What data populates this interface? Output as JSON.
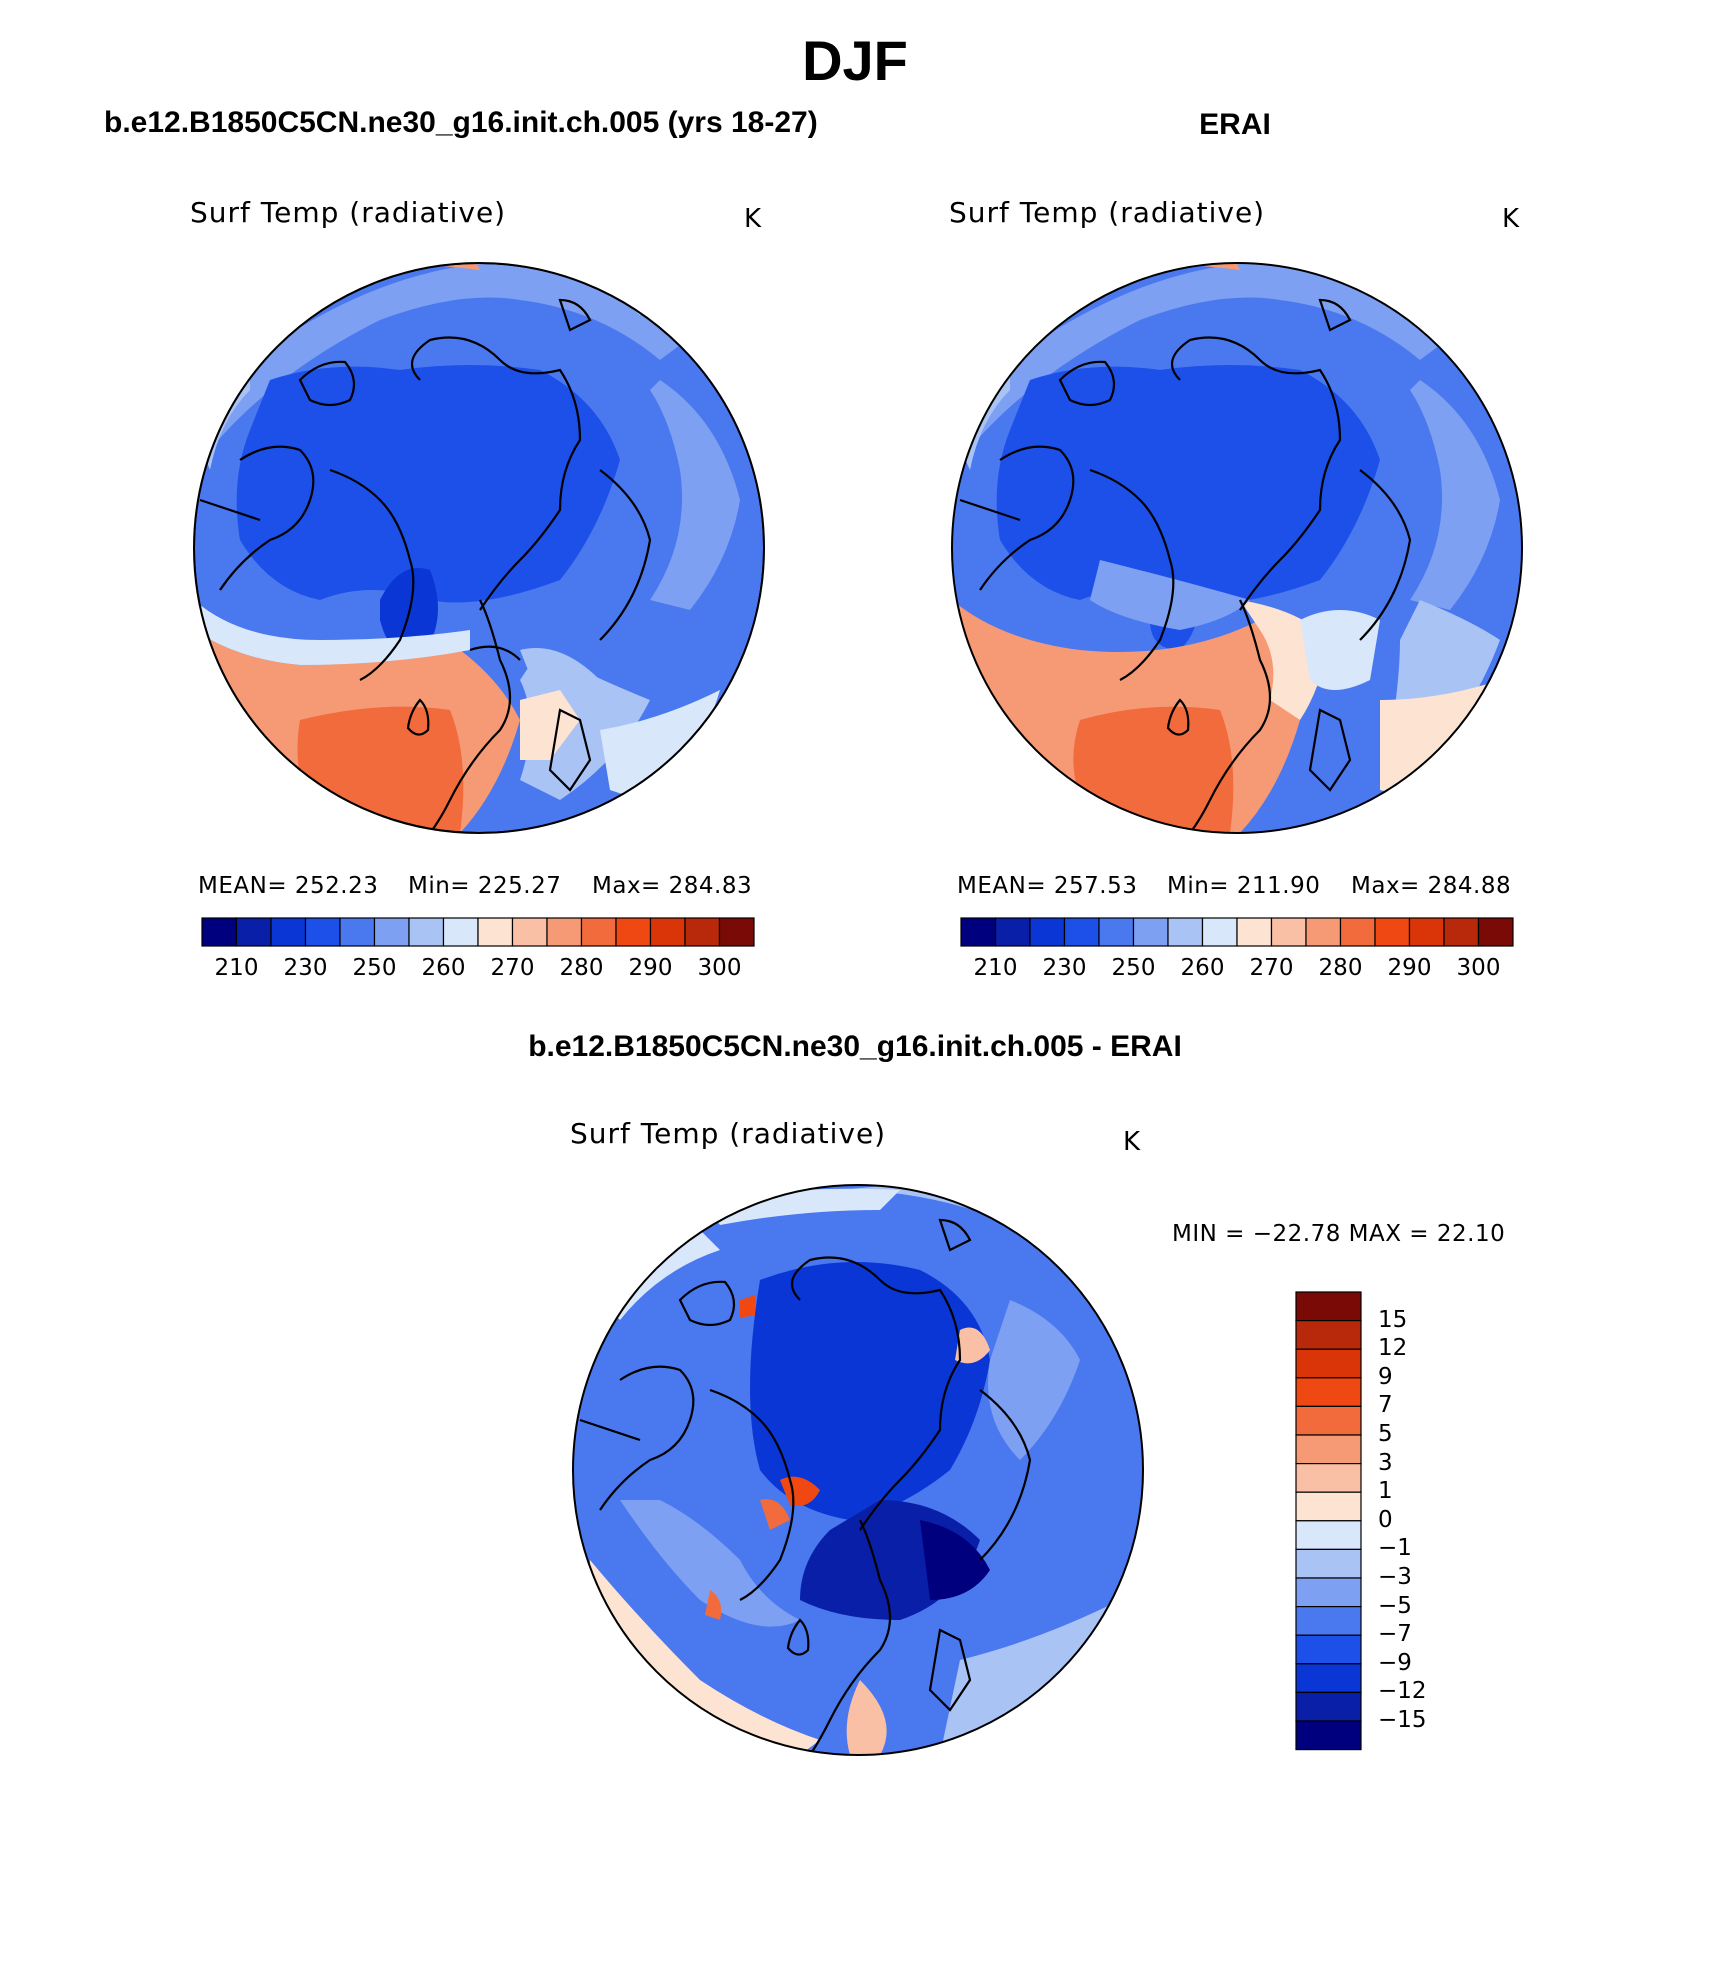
{
  "figure": {
    "season": "DJF",
    "model_title": "b.e12.B1850C5CN.ne30_g16.init.ch.005 (yrs 18-27)",
    "obs_title": "ERAI",
    "diff_title": "b.e12.B1850C5CN.ne30_g16.init.ch.005 - ERAI"
  },
  "panels": {
    "model": {
      "variable": "Surf Temp (radiative)",
      "units": "K",
      "mean_text": "MEAN=  252.23",
      "min_text": "Min=  225.27",
      "max_text": "Max=  284.83",
      "mean": 252.23,
      "min": 225.27,
      "max": 284.83
    },
    "obs": {
      "variable": "Surf Temp (radiative)",
      "units": "K",
      "mean_text": "MEAN=  257.53",
      "min_text": "Min=  211.90",
      "max_text": "Max=  284.88",
      "mean": 257.53,
      "min": 211.9,
      "max": 284.88
    },
    "diff": {
      "variable": "Surf Temp (radiative)",
      "units": "K",
      "minmax_text": "MIN = −22.78  MAX =   22.10",
      "min": -22.78,
      "max": 22.1
    }
  },
  "colorbars": {
    "absolute": {
      "colors": [
        "#00007e",
        "#0a1fa8",
        "#0b36d6",
        "#1c50e8",
        "#4a78ef",
        "#7da0f2",
        "#a9c3f5",
        "#d9e7fb",
        "#fde3d1",
        "#f9c0a5",
        "#f59a75",
        "#f26b3c",
        "#ef4812",
        "#d93508",
        "#b8290b",
        "#7a0a05"
      ],
      "tick_labels": [
        "210",
        "230",
        "250",
        "260",
        "270",
        "280",
        "290",
        "300"
      ]
    },
    "difference": {
      "colors": [
        "#00007e",
        "#0a1fa8",
        "#0b36d6",
        "#1c50e8",
        "#4a78ef",
        "#7da0f2",
        "#a9c3f5",
        "#d9e7fb",
        "#fde3d1",
        "#f9c0a5",
        "#f59a75",
        "#f26b3c",
        "#ef4812",
        "#d93508",
        "#b8290b",
        "#7a0a05"
      ],
      "tick_labels": [
        "15",
        "12",
        "9",
        "7",
        "5",
        "3",
        "1",
        "0",
        "−1",
        "−3",
        "−5",
        "−7",
        "−9",
        "−12",
        "−15"
      ]
    }
  }
}
